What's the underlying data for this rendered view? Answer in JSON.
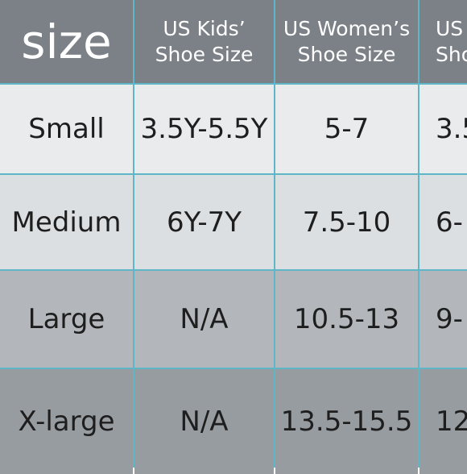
{
  "table": {
    "header": [
      [
        "size"
      ],
      [
        "US Kids’",
        "Shoe Size"
      ],
      [
        "US Women’s",
        "Shoe Size"
      ],
      [
        "US",
        "Sho"
      ]
    ],
    "rows": [
      [
        "Small",
        "3.5Y-5.5Y",
        "5-7",
        "3.5"
      ],
      [
        "Medium",
        "6Y-7Y",
        "7.5-10",
        "6-"
      ],
      [
        "Large",
        "N/A",
        "10.5-13",
        "9-"
      ],
      [
        "X-large",
        "N/A",
        "13.5-15.5",
        "12"
      ]
    ]
  }
}
